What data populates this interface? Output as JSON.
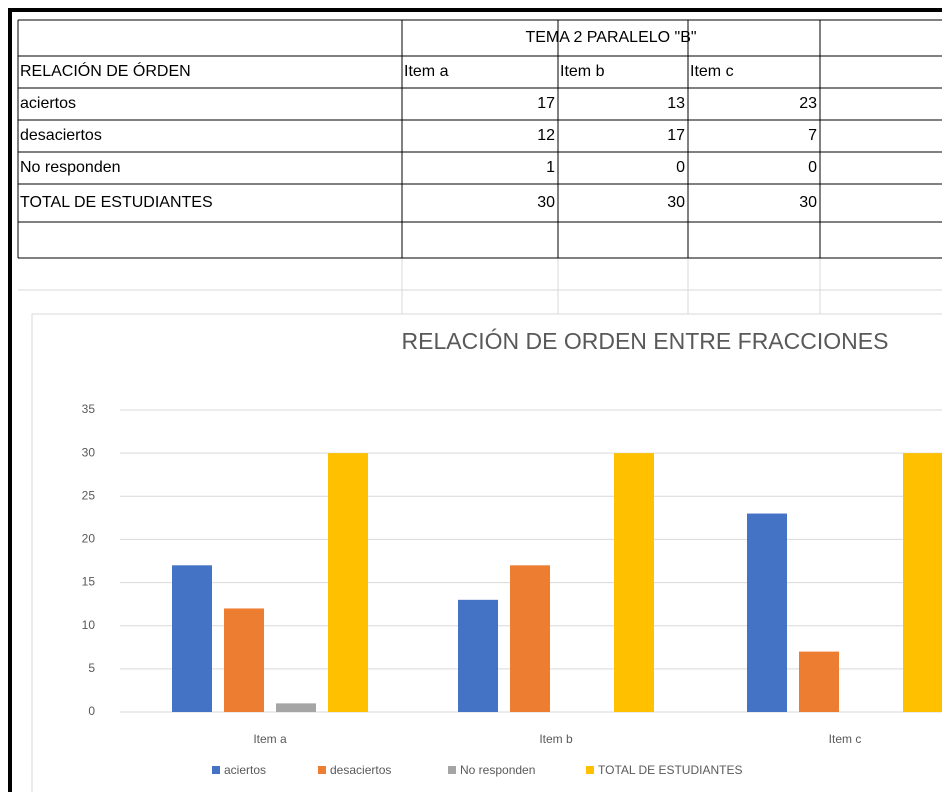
{
  "table": {
    "title": "TEMA 2 PARALELO \"B\"",
    "columns": [
      "RELACIÓN DE ÓRDEN",
      "Item a",
      "Item b",
      "Item c"
    ],
    "rows": [
      [
        "aciertos",
        17,
        13,
        23
      ],
      [
        "desaciertos",
        12,
        17,
        7
      ],
      [
        "No responden",
        1,
        0,
        0
      ],
      [
        "TOTAL DE ESTUDIANTES",
        30,
        30,
        30
      ]
    ]
  },
  "chart_data": {
    "type": "bar",
    "title": "RELACIÓN DE ORDEN ENTRE FRACCIONES",
    "categories": [
      "Item a",
      "Item b",
      "Item c"
    ],
    "series": [
      {
        "name": "aciertos",
        "color": "#4472c4",
        "values": [
          17,
          13,
          23
        ]
      },
      {
        "name": "desaciertos",
        "color": "#ed7d31",
        "values": [
          12,
          17,
          7
        ]
      },
      {
        "name": "No responden",
        "color": "#a5a5a5",
        "values": [
          1,
          0,
          0
        ]
      },
      {
        "name": "TOTAL DE ESTUDIANTES",
        "color": "#ffc000",
        "values": [
          30,
          30,
          30
        ]
      }
    ],
    "ylim": [
      0,
      35
    ],
    "yticks": [
      0,
      5,
      10,
      15,
      20,
      25,
      30,
      35
    ],
    "grid": true,
    "legend": "bottom"
  }
}
